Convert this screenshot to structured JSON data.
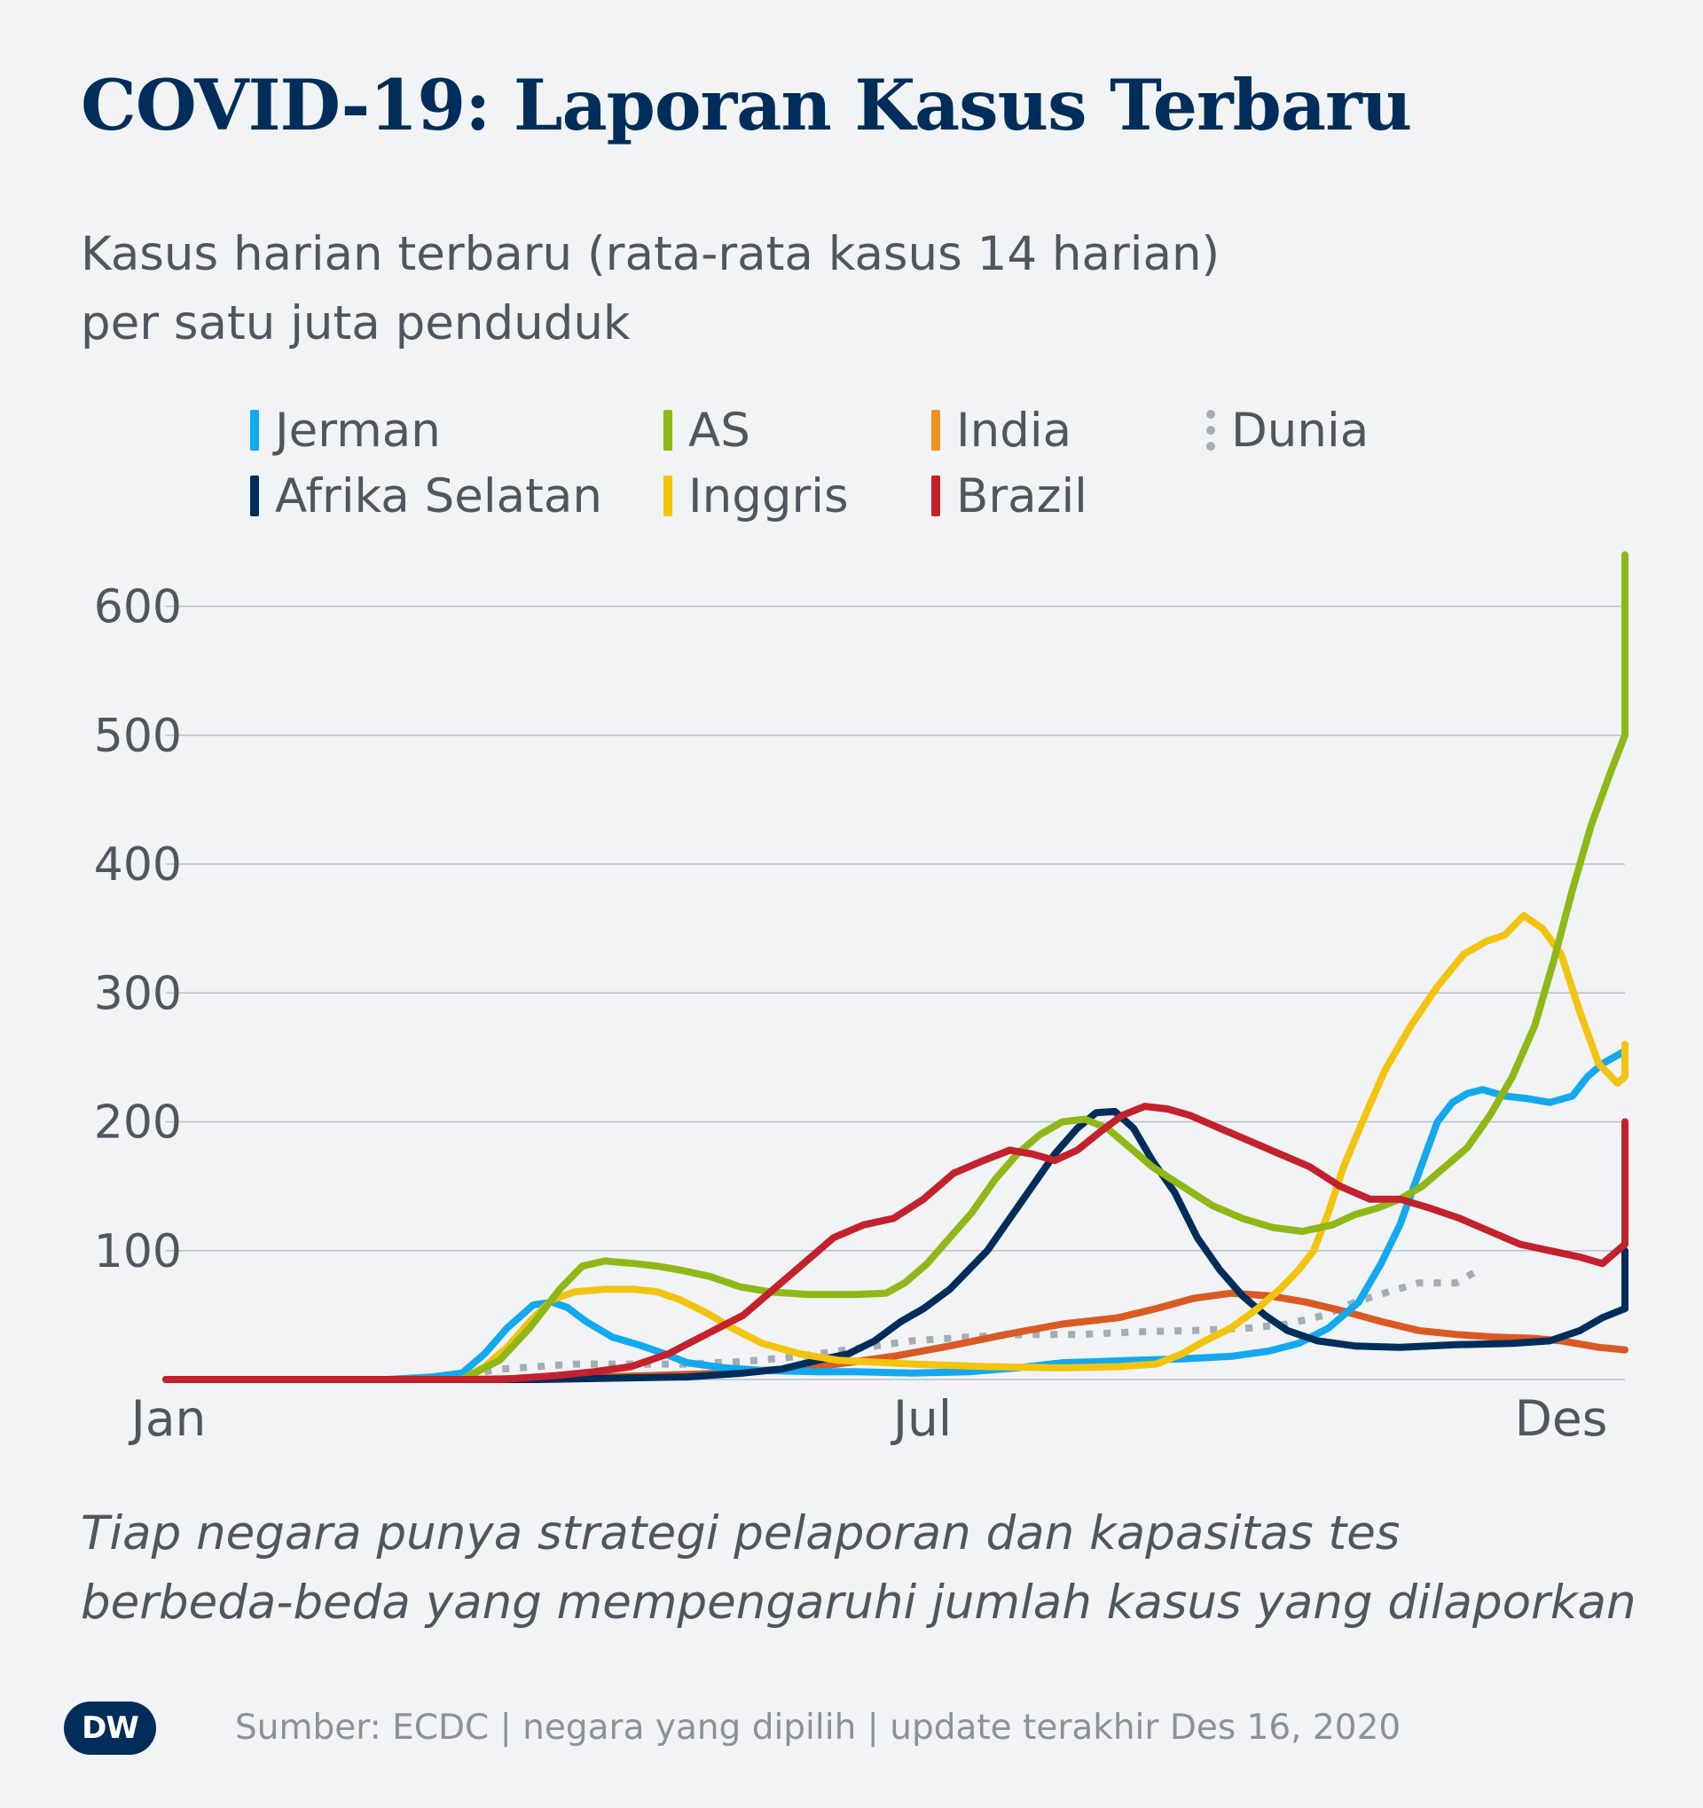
{
  "title": "COVID-19: Laporan Kasus Terbaru",
  "subtitle_line1": "Kasus harian terbaru (rata-rata kasus 14 harian)",
  "subtitle_line2": "per satu juta penduduk",
  "footnote_line1": "Tiap negara punya strategi pelaporan dan kapasitas tes",
  "footnote_line2": "berbeda-beda yang mempengaruhi jumlah kasus yang dilaporkan",
  "source": "Sumber: ECDC | negara yang dipilih | update terakhir Des 16, 2020",
  "logo_text": "DW",
  "legend": [
    {
      "name": "Jerman",
      "color": "#12a9ee",
      "style": "solid"
    },
    {
      "name": "AS",
      "color": "#8fb816",
      "style": "solid"
    },
    {
      "name": "India",
      "color": "#f19121",
      "style": "solid"
    },
    {
      "name": "Dunia",
      "color": "#a3adb7",
      "style": "dotted"
    },
    {
      "name": "Afrika Selatan",
      "color": "#002d5a",
      "style": "solid"
    },
    {
      "name": "Inggris",
      "color": "#f2c40f",
      "style": "solid"
    },
    {
      "name": "Brazil",
      "color": "#c3212c",
      "style": "solid"
    }
  ],
  "chart_data": {
    "type": "line",
    "title": "COVID-19: Laporan Kasus Terbaru",
    "x_ticks": [
      {
        "label": "Jan",
        "day": 1
      },
      {
        "label": "Jul",
        "day": 183
      },
      {
        "label": "Des",
        "day": 336
      }
    ],
    "y_ticks": [
      100,
      200,
      300,
      400,
      500,
      600
    ],
    "ylim": [
      0,
      650
    ],
    "xlim_days": [
      1,
      351
    ],
    "x_unit": "day of year 2020",
    "grid": true,
    "series": [
      {
        "name": "Dunia",
        "color": "#a3adb7",
        "style": "dotted",
        "points": [
          [
            1,
            0
          ],
          [
            60,
            0
          ],
          [
            75,
            1
          ],
          [
            90,
            8
          ],
          [
            110,
            12
          ],
          [
            125,
            12
          ],
          [
            140,
            12
          ],
          [
            155,
            14
          ],
          [
            170,
            18
          ],
          [
            185,
            24
          ],
          [
            200,
            30
          ],
          [
            215,
            33
          ],
          [
            230,
            35
          ],
          [
            245,
            35
          ],
          [
            260,
            37
          ],
          [
            275,
            38
          ],
          [
            290,
            40
          ],
          [
            300,
            43
          ],
          [
            310,
            50
          ],
          [
            318,
            60
          ],
          [
            327,
            68
          ],
          [
            335,
            75
          ],
          [
            345,
            75
          ],
          [
            351,
            85
          ]
        ]
      },
      {
        "name": "India",
        "color": "#d95a23",
        "style": "solid",
        "points": [
          [
            1,
            0
          ],
          [
            80,
            0
          ],
          [
            100,
            1
          ],
          [
            130,
            3
          ],
          [
            150,
            5
          ],
          [
            165,
            8
          ],
          [
            180,
            12
          ],
          [
            195,
            18
          ],
          [
            210,
            26
          ],
          [
            225,
            35
          ],
          [
            240,
            43
          ],
          [
            255,
            48
          ],
          [
            265,
            55
          ],
          [
            275,
            63
          ],
          [
            285,
            67
          ],
          [
            295,
            65
          ],
          [
            305,
            60
          ],
          [
            315,
            53
          ],
          [
            325,
            45
          ],
          [
            335,
            38
          ],
          [
            345,
            35
          ],
          [
            355,
            33
          ],
          [
            365,
            32
          ],
          [
            373,
            30
          ],
          [
            383,
            25
          ],
          [
            390,
            23
          ]
        ]
      },
      {
        "name": "Jerman",
        "color": "#12a9ee",
        "style": "solid",
        "points": [
          [
            1,
            0
          ],
          [
            60,
            0
          ],
          [
            72,
            2
          ],
          [
            80,
            5
          ],
          [
            86,
            20
          ],
          [
            92,
            40
          ],
          [
            99,
            58
          ],
          [
            104,
            60
          ],
          [
            108,
            56
          ],
          [
            113,
            45
          ],
          [
            120,
            33
          ],
          [
            127,
            27
          ],
          [
            134,
            20
          ],
          [
            140,
            13
          ],
          [
            150,
            9
          ],
          [
            160,
            7
          ],
          [
            175,
            6
          ],
          [
            185,
            6
          ],
          [
            200,
            5
          ],
          [
            215,
            6
          ],
          [
            228,
            9
          ],
          [
            240,
            13
          ],
          [
            250,
            14
          ],
          [
            260,
            15
          ],
          [
            272,
            16
          ],
          [
            285,
            18
          ],
          [
            295,
            22
          ],
          [
            303,
            28
          ],
          [
            311,
            40
          ],
          [
            319,
            60
          ],
          [
            325,
            90
          ],
          [
            330,
            120
          ],
          [
            335,
            160
          ],
          [
            340,
            200
          ],
          [
            344,
            215
          ],
          [
            348,
            222
          ],
          [
            352,
            225
          ],
          [
            358,
            220
          ],
          [
            364,
            218
          ],
          [
            370,
            215
          ],
          [
            376,
            220
          ],
          [
            380,
            235
          ],
          [
            384,
            245
          ],
          [
            390,
            255
          ]
        ]
      },
      {
        "name": "Afrika Selatan",
        "color": "#002d5a",
        "style": "solid",
        "points": [
          [
            1,
            0
          ],
          [
            100,
            0
          ],
          [
            120,
            1
          ],
          [
            140,
            2
          ],
          [
            155,
            5
          ],
          [
            165,
            8
          ],
          [
            175,
            15
          ],
          [
            183,
            20
          ],
          [
            190,
            30
          ],
          [
            197,
            45
          ],
          [
            203,
            55
          ],
          [
            210,
            70
          ],
          [
            216,
            88
          ],
          [
            220,
            100
          ],
          [
            226,
            125
          ],
          [
            232,
            150
          ],
          [
            238,
            175
          ],
          [
            244,
            195
          ],
          [
            249,
            207
          ],
          [
            254,
            208
          ],
          [
            259,
            195
          ],
          [
            264,
            170
          ],
          [
            270,
            145
          ],
          [
            276,
            110
          ],
          [
            282,
            85
          ],
          [
            288,
            65
          ],
          [
            294,
            50
          ],
          [
            300,
            38
          ],
          [
            308,
            30
          ],
          [
            318,
            26
          ],
          [
            330,
            25
          ],
          [
            345,
            27
          ],
          [
            360,
            28
          ],
          [
            370,
            30
          ],
          [
            378,
            38
          ],
          [
            384,
            48
          ],
          [
            390,
            55
          ],
          [
            396,
            65
          ],
          [
            401,
            85
          ],
          [
            406,
            100
          ]
        ]
      },
      {
        "name": "Inggris",
        "color": "#f2c40f",
        "style": "solid",
        "points": [
          [
            1,
            0
          ],
          [
            80,
            0
          ],
          [
            86,
            10
          ],
          [
            92,
            25
          ],
          [
            98,
            45
          ],
          [
            104,
            62
          ],
          [
            110,
            68
          ],
          [
            118,
            70
          ],
          [
            126,
            70
          ],
          [
            132,
            68
          ],
          [
            138,
            62
          ],
          [
            145,
            52
          ],
          [
            152,
            40
          ],
          [
            160,
            28
          ],
          [
            170,
            20
          ],
          [
            180,
            15
          ],
          [
            200,
            12
          ],
          [
            220,
            10
          ],
          [
            240,
            9
          ],
          [
            255,
            10
          ],
          [
            265,
            12
          ],
          [
            272,
            20
          ],
          [
            278,
            30
          ],
          [
            285,
            40
          ],
          [
            292,
            55
          ],
          [
            298,
            70
          ],
          [
            303,
            85
          ],
          [
            307,
            100
          ],
          [
            311,
            130
          ],
          [
            315,
            165
          ],
          [
            320,
            200
          ],
          [
            326,
            240
          ],
          [
            333,
            275
          ],
          [
            340,
            305
          ],
          [
            347,
            330
          ],
          [
            353,
            340
          ],
          [
            358,
            345
          ],
          [
            363,
            360
          ],
          [
            368,
            350
          ],
          [
            373,
            330
          ],
          [
            378,
            285
          ],
          [
            383,
            245
          ],
          [
            388,
            230
          ],
          [
            392,
            235
          ],
          [
            396,
            250
          ],
          [
            400,
            260
          ]
        ]
      },
      {
        "name": "AS",
        "color": "#8fb816",
        "style": "solid",
        "points": [
          [
            1,
            0
          ],
          [
            80,
            0
          ],
          [
            90,
            15
          ],
          [
            98,
            40
          ],
          [
            106,
            70
          ],
          [
            112,
            88
          ],
          [
            118,
            92
          ],
          [
            126,
            90
          ],
          [
            132,
            88
          ],
          [
            138,
            85
          ],
          [
            146,
            80
          ],
          [
            154,
            72
          ],
          [
            162,
            68
          ],
          [
            172,
            66
          ],
          [
            185,
            66
          ],
          [
            193,
            67
          ],
          [
            198,
            75
          ],
          [
            204,
            90
          ],
          [
            210,
            110
          ],
          [
            216,
            130
          ],
          [
            222,
            155
          ],
          [
            228,
            175
          ],
          [
            234,
            190
          ],
          [
            240,
            200
          ],
          [
            246,
            202
          ],
          [
            252,
            195
          ],
          [
            258,
            180
          ],
          [
            264,
            165
          ],
          [
            272,
            150
          ],
          [
            280,
            135
          ],
          [
            288,
            125
          ],
          [
            296,
            118
          ],
          [
            304,
            115
          ],
          [
            312,
            120
          ],
          [
            318,
            128
          ],
          [
            324,
            133
          ],
          [
            330,
            140
          ],
          [
            336,
            150
          ],
          [
            342,
            165
          ],
          [
            348,
            180
          ],
          [
            354,
            205
          ],
          [
            360,
            235
          ],
          [
            366,
            275
          ],
          [
            371,
            325
          ],
          [
            376,
            380
          ],
          [
            381,
            430
          ],
          [
            386,
            470
          ],
          [
            391,
            500
          ],
          [
            395,
            515
          ],
          [
            400,
            510
          ],
          [
            405,
            520
          ],
          [
            410,
            545
          ],
          [
            415,
            565
          ],
          [
            420,
            600
          ],
          [
            425,
            630
          ],
          [
            430,
            640
          ]
        ]
      },
      {
        "name": "Brazil",
        "color": "#c3212c",
        "style": "solid",
        "points": [
          [
            1,
            0
          ],
          [
            90,
            0
          ],
          [
            105,
            3
          ],
          [
            115,
            6
          ],
          [
            125,
            10
          ],
          [
            135,
            20
          ],
          [
            145,
            35
          ],
          [
            155,
            50
          ],
          [
            163,
            70
          ],
          [
            171,
            90
          ],
          [
            179,
            110
          ],
          [
            187,
            120
          ],
          [
            195,
            125
          ],
          [
            203,
            140
          ],
          [
            211,
            160
          ],
          [
            219,
            170
          ],
          [
            226,
            178
          ],
          [
            232,
            175
          ],
          [
            238,
            170
          ],
          [
            244,
            178
          ],
          [
            250,
            192
          ],
          [
            256,
            205
          ],
          [
            262,
            212
          ],
          [
            268,
            210
          ],
          [
            274,
            205
          ],
          [
            282,
            195
          ],
          [
            290,
            185
          ],
          [
            298,
            175
          ],
          [
            306,
            165
          ],
          [
            314,
            150
          ],
          [
            322,
            140
          ],
          [
            330,
            140
          ],
          [
            338,
            133
          ],
          [
            346,
            125
          ],
          [
            354,
            115
          ],
          [
            362,
            105
          ],
          [
            370,
            100
          ],
          [
            378,
            95
          ],
          [
            384,
            90
          ],
          [
            390,
            105
          ],
          [
            396,
            125
          ],
          [
            402,
            140
          ],
          [
            408,
            145
          ],
          [
            414,
            160
          ],
          [
            420,
            175
          ],
          [
            426,
            185
          ],
          [
            432,
            200
          ],
          [
            436,
            198
          ]
        ]
      }
    ]
  }
}
